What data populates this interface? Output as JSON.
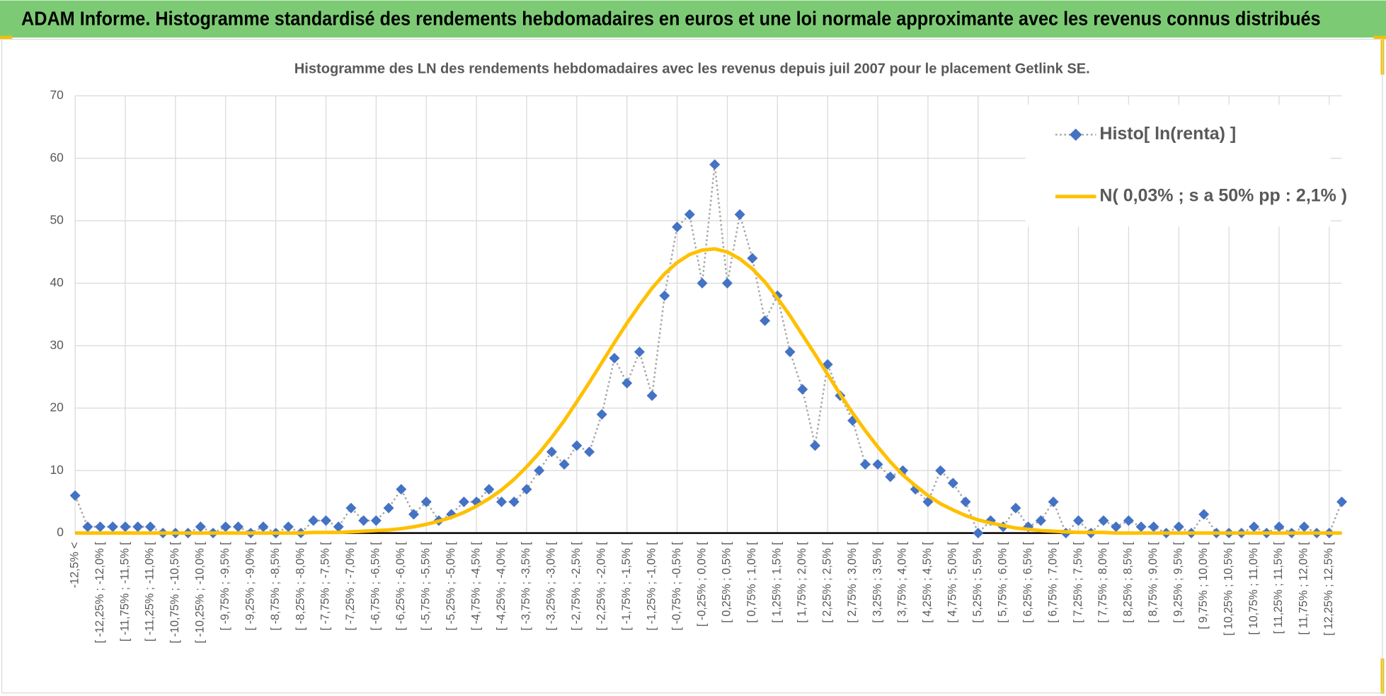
{
  "header": {
    "title": "ADAM Informe. Histogramme standardisé des rendements hebdomadaires en euros et une loi normale approximante avec les revenus connus distribués"
  },
  "chart_data": {
    "type": "line",
    "title": "Histogramme des LN des rendements hebdomadaires avec les revenus depuis juil 2007 pour le placement Getlink SE.",
    "categories": [
      "-12,5% <",
      null,
      "[ -12,25% ; -12,0% [",
      null,
      "[ -11,75% ; -11,5% [",
      null,
      "[ -11,25% ; -11,0% [",
      null,
      "[ -10,75% ; -10,5% [",
      null,
      "[ -10,25% ; -10,0% [",
      null,
      "[ -9,75% ; -9,5% [",
      null,
      "[ -9,25% ; -9,0% [",
      null,
      "[ -8,75% ; -8,5% [",
      null,
      "[ -8,25% ; -8,0% [",
      null,
      "[ -7,75% ; -7,5% [",
      null,
      "[ -7,25% ; -7,0% [",
      null,
      "[ -6,75% ; -6,5% [",
      null,
      "[ -6,25% ; -6,0% [",
      null,
      "[ -5,75% ; -5,5% [",
      null,
      "[ -5,25% ; -5,0% [",
      null,
      "[ -4,75% ; -4,5% [",
      null,
      "[ -4,25% ; -4,0% [",
      null,
      "[ -3,75% ; -3,5% [",
      null,
      "[ -3,25% ; -3,0% [",
      null,
      "[ -2,75% ; -2,5% [",
      null,
      "[ -2,25% ; -2,0% [",
      null,
      "[ -1,75% ; -1,5% [",
      null,
      "[ -1,25% ; -1,0% [",
      null,
      "[ -0,75% ; -0,5% [",
      null,
      "[ -0,25% ; 0,0% [",
      null,
      "[ 0,25% ; 0,5% [",
      null,
      "[ 0,75% ; 1,0% [",
      null,
      "[ 1,25% ; 1,5% [",
      null,
      "[ 1,75% ; 2,0% [",
      null,
      "[ 2,25% ; 2,5% [",
      null,
      "[ 2,75% ; 3,0% [",
      null,
      "[ 3,25% ; 3,5% [",
      null,
      "[ 3,75% ; 4,0% [",
      null,
      "[ 4,25% ; 4,5% [",
      null,
      "[ 4,75% ; 5,0% [",
      null,
      "[ 5,25% ; 5,5% [",
      null,
      "[ 5,75% ; 6,0% [",
      null,
      "[ 6,25% ; 6,5% [",
      null,
      "[ 6,75% ; 7,0% [",
      null,
      "[ 7,25% ; 7,5% [",
      null,
      "[ 7,75% ; 8,0% [",
      null,
      "[ 8,25% ; 8,5% [",
      null,
      "[ 8,75% ; 9,0% [",
      null,
      "[ 9,25% ; 9,5% [",
      null,
      "[ 9,75% ; 10,0% [",
      null,
      "[ 10,25% ; 10,5% [",
      null,
      "[ 10,75% ; 11,0% [",
      null,
      "[ 11,25% ; 11,5% [",
      null,
      "[ 11,75% ; 12,0% [",
      null,
      "[ 12,25% ; 12,5% [",
      null
    ],
    "series": [
      {
        "name": "Histo[ ln(renta) ]",
        "color": "#4472c4",
        "line_color": "#a5a5a5",
        "dash": "dotted",
        "marker": "diamond",
        "values": [
          6,
          1,
          1,
          1,
          1,
          1,
          1,
          0,
          0,
          0,
          1,
          0,
          1,
          1,
          0,
          1,
          0,
          1,
          0,
          2,
          2,
          1,
          4,
          2,
          2,
          4,
          7,
          3,
          5,
          2,
          3,
          5,
          5,
          7,
          5,
          5,
          7,
          10,
          13,
          11,
          14,
          13,
          19,
          28,
          24,
          29,
          22,
          38,
          49,
          51,
          40,
          59,
          40,
          51,
          44,
          34,
          38,
          29,
          23,
          14,
          27,
          22,
          18,
          11,
          11,
          9,
          10,
          7,
          5,
          10,
          8,
          5,
          0,
          2,
          1,
          4,
          1,
          2,
          5,
          0,
          2,
          0,
          2,
          1,
          2,
          1,
          1,
          0,
          1,
          0,
          3,
          0,
          0,
          0,
          1,
          0,
          1,
          0,
          1,
          0,
          0,
          5
        ]
      },
      {
        "name": "N( 0,03% ; s a 50% pp : 2,1% )",
        "color": "#ffc000",
        "dash": "solid",
        "marker": "none",
        "values": [
          0,
          0,
          0,
          0,
          0,
          0,
          0,
          0,
          0,
          0,
          0,
          0,
          0,
          0,
          0,
          0,
          0,
          0,
          0,
          0.1,
          0.1,
          0.1,
          0.2,
          0.3,
          0.4,
          0.5,
          0.7,
          1.0,
          1.4,
          1.9,
          2.5,
          3.3,
          4.3,
          5.5,
          6.9,
          8.6,
          10.6,
          12.8,
          15.3,
          18.0,
          21.0,
          24.1,
          27.3,
          30.5,
          33.6,
          36.5,
          39.2,
          41.5,
          43.3,
          44.6,
          45.3,
          45.5,
          45.0,
          43.9,
          42.3,
          40.2,
          37.6,
          34.8,
          31.7,
          28.6,
          25.4,
          22.2,
          19.2,
          16.4,
          13.8,
          11.4,
          9.3,
          7.6,
          6.0,
          4.7,
          3.7,
          2.8,
          2.1,
          1.6,
          1.2,
          0.8,
          0.6,
          0.4,
          0.3,
          0.2,
          0.1,
          0.1,
          0.1,
          0,
          0,
          0,
          0,
          0,
          0,
          0,
          0,
          0,
          0,
          0,
          0,
          0,
          0,
          0,
          0,
          0,
          0,
          0
        ]
      }
    ],
    "ylim": [
      0,
      70
    ],
    "yticks": [
      0,
      10,
      20,
      30,
      40,
      50,
      60,
      70
    ],
    "grid": true,
    "legend": "upper right"
  }
}
